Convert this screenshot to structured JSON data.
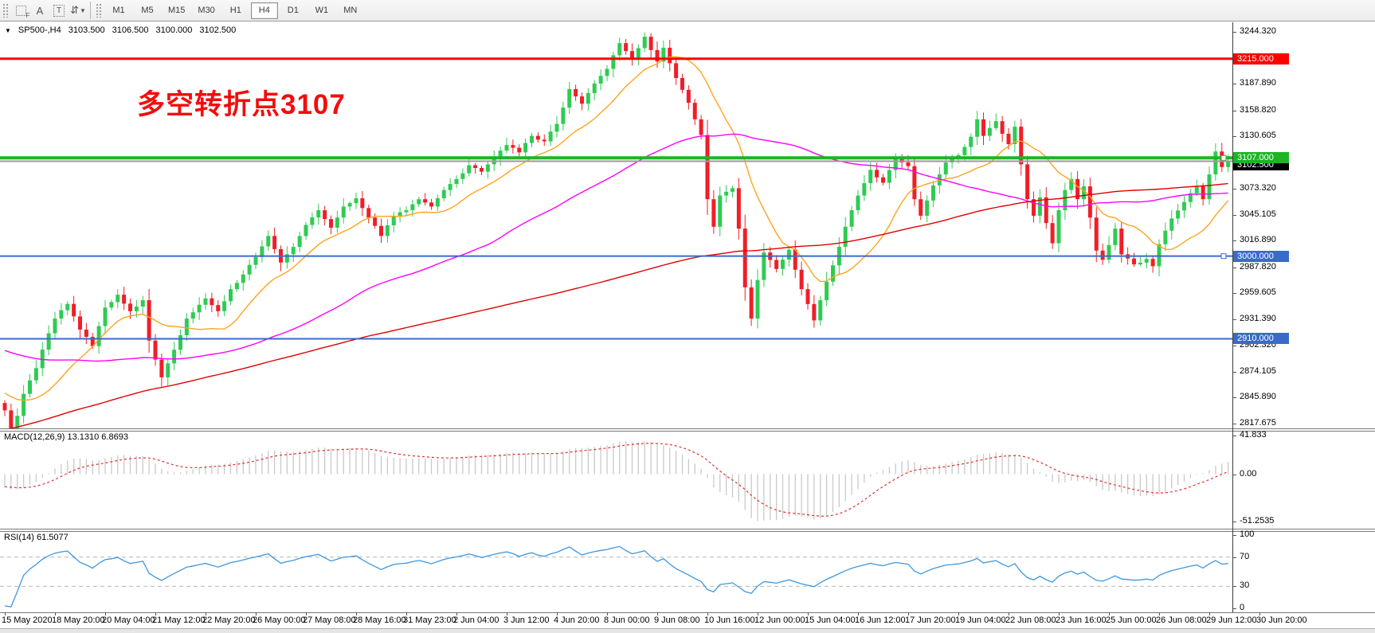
{
  "toolbar": {
    "icons": [
      {
        "name": "shapes-f-icon",
        "glyph": "F"
      },
      {
        "name": "text-a-icon",
        "glyph": "A"
      },
      {
        "name": "label-t-icon",
        "glyph": "T"
      },
      {
        "name": "arrange-arrows-icon",
        "glyph": "⇵"
      }
    ],
    "timeframes": [
      {
        "label": "M1",
        "active": false
      },
      {
        "label": "M5",
        "active": false
      },
      {
        "label": "M15",
        "active": false
      },
      {
        "label": "M30",
        "active": false
      },
      {
        "label": "H1",
        "active": false
      },
      {
        "label": "H4",
        "active": true
      },
      {
        "label": "D1",
        "active": false
      },
      {
        "label": "W1",
        "active": false
      },
      {
        "label": "MN",
        "active": false
      }
    ]
  },
  "header": {
    "caret": "▼",
    "symbol_period": "SP500-,H4",
    "open": "3103.500",
    "high": "3106.500",
    "low": "3100.000",
    "close": "3102.500"
  },
  "annotation": {
    "text": "多空转折点3107",
    "color": "#f20d0d"
  },
  "indicators": {
    "macd_label": "MACD(12,26,9) 13.1310 6.8693",
    "rsi_label": "RSI(14) 61.5077"
  },
  "axes": {
    "main_ticks": [
      {
        "label": "3244.320",
        "price": 3244.32,
        "badge": null
      },
      {
        "label": "3215.000",
        "price": 3215.0,
        "badge": "#fe0000"
      },
      {
        "label": "3187.890",
        "price": 3187.89,
        "badge": null
      },
      {
        "label": "3158.820",
        "price": 3158.82,
        "badge": null
      },
      {
        "label": "3130.605",
        "price": 3130.605,
        "badge": null
      },
      {
        "label": "3102.500",
        "price": 3102.5,
        "badge": "#000000"
      },
      {
        "label": "3107.000",
        "price": 3107.0,
        "badge": "#1db426"
      },
      {
        "label": "3073.320",
        "price": 3073.32,
        "badge": null
      },
      {
        "label": "3045.105",
        "price": 3045.105,
        "badge": null
      },
      {
        "label": "3016.890",
        "price": 3016.89,
        "badge": null
      },
      {
        "label": "3000.000",
        "price": 3000.0,
        "badge": "#3a6bc8"
      },
      {
        "label": "2987.820",
        "price": 2987.82,
        "badge": null
      },
      {
        "label": "2959.605",
        "price": 2959.605,
        "badge": null
      },
      {
        "label": "2931.390",
        "price": 2931.39,
        "badge": null
      },
      {
        "label": "2910.000",
        "price": 2910.0,
        "badge": "#3a6bc8"
      },
      {
        "label": "2902.320",
        "price": 2902.32,
        "badge": null
      },
      {
        "label": "2874.105",
        "price": 2874.105,
        "badge": null
      },
      {
        "label": "2845.890",
        "price": 2845.89,
        "badge": null
      },
      {
        "label": "2817.675",
        "price": 2817.675,
        "badge": null
      }
    ],
    "macd_ticks": [
      {
        "label": "41.833",
        "value": 41.833
      },
      {
        "label": "0.00",
        "value": 0
      },
      {
        "label": "-51.2535",
        "value": -51.2535
      }
    ],
    "rsi_ticks": [
      {
        "label": "100",
        "value": 100
      },
      {
        "label": "70",
        "value": 70
      },
      {
        "label": "30",
        "value": 30
      },
      {
        "label": "0",
        "value": 0
      }
    ],
    "time_labels": [
      "15 May 2020",
      "18 May 20:00",
      "20 May 04:00",
      "21 May 12:00",
      "22 May 20:00",
      "26 May 00:00",
      "27 May 08:00",
      "28 May 16:00",
      "31 May 23:00",
      "2 Jun 04:00",
      "3 Jun 12:00",
      "4 Jun 20:00",
      "8 Jun 00:00",
      "9 Jun 08:00",
      "10 Jun 16:00",
      "12 Jun 00:00",
      "15 Jun 04:00",
      "16 Jun 12:00",
      "17 Jun 20:00",
      "19 Jun 04:00",
      "22 Jun 08:00",
      "23 Jun 16:00",
      "25 Jun 00:00",
      "26 Jun 08:00",
      "29 Jun 12:00",
      "30 Jun 20:00"
    ]
  },
  "chart_data": {
    "type": "candlestick",
    "symbol": "SP500-",
    "timeframe": "H4",
    "bars": 196,
    "price_axis_range": {
      "top": 3254.7,
      "bottom": 2812.4
    },
    "close_keypoints": [
      [
        0,
        2832
      ],
      [
        1,
        2812
      ],
      [
        2,
        2826
      ],
      [
        3,
        2850
      ],
      [
        5,
        2878
      ],
      [
        7,
        2916
      ],
      [
        8,
        2932
      ],
      [
        10,
        2948
      ],
      [
        12,
        2920
      ],
      [
        14,
        2902
      ],
      [
        16,
        2944
      ],
      [
        18,
        2958
      ],
      [
        20,
        2940
      ],
      [
        22,
        2952
      ],
      [
        23,
        2908
      ],
      [
        25,
        2868
      ],
      [
        27,
        2898
      ],
      [
        29,
        2932
      ],
      [
        32,
        2954
      ],
      [
        34,
        2940
      ],
      [
        36,
        2964
      ],
      [
        38,
        2980
      ],
      [
        40,
        2999
      ],
      [
        42,
        3022
      ],
      [
        44,
        2993
      ],
      [
        46,
        3010
      ],
      [
        48,
        3034
      ],
      [
        50,
        3050
      ],
      [
        52,
        3031
      ],
      [
        54,
        3054
      ],
      [
        56,
        3063
      ],
      [
        58,
        3042
      ],
      [
        60,
        3022
      ],
      [
        62,
        3044
      ],
      [
        64,
        3050
      ],
      [
        66,
        3062
      ],
      [
        68,
        3054
      ],
      [
        70,
        3072
      ],
      [
        72,
        3084
      ],
      [
        74,
        3099
      ],
      [
        76,
        3092
      ],
      [
        78,
        3107
      ],
      [
        80,
        3121
      ],
      [
        82,
        3113
      ],
      [
        84,
        3131
      ],
      [
        86,
        3125
      ],
      [
        88,
        3144
      ],
      [
        90,
        3182
      ],
      [
        92,
        3166
      ],
      [
        94,
        3188
      ],
      [
        96,
        3204
      ],
      [
        98,
        3232
      ],
      [
        100,
        3216
      ],
      [
        102,
        3239
      ],
      [
        104,
        3212
      ],
      [
        105,
        3227
      ],
      [
        107,
        3194
      ],
      [
        109,
        3167
      ],
      [
        111,
        3132
      ],
      [
        112,
        3062
      ],
      [
        113,
        3032
      ],
      [
        114,
        3066
      ],
      [
        116,
        3074
      ],
      [
        117,
        3030
      ],
      [
        118,
        2966
      ],
      [
        119,
        2932
      ],
      [
        120,
        2974
      ],
      [
        121,
        3004
      ],
      [
        123,
        2986
      ],
      [
        125,
        3007
      ],
      [
        127,
        2964
      ],
      [
        129,
        2930
      ],
      [
        130,
        2952
      ],
      [
        132,
        2990
      ],
      [
        134,
        3032
      ],
      [
        136,
        3066
      ],
      [
        138,
        3094
      ],
      [
        140,
        3080
      ],
      [
        142,
        3106
      ],
      [
        144,
        3098
      ],
      [
        145,
        3062
      ],
      [
        146,
        3044
      ],
      [
        148,
        3077
      ],
      [
        150,
        3102
      ],
      [
        152,
        3110
      ],
      [
        154,
        3130
      ],
      [
        155,
        3149
      ],
      [
        156,
        3131
      ],
      [
        158,
        3147
      ],
      [
        160,
        3122
      ],
      [
        161,
        3141
      ],
      [
        162,
        3100
      ],
      [
        163,
        3062
      ],
      [
        164,
        3044
      ],
      [
        165,
        3064
      ],
      [
        166,
        3036
      ],
      [
        167,
        3014
      ],
      [
        168,
        3050
      ],
      [
        169,
        3072
      ],
      [
        170,
        3084
      ],
      [
        171,
        3062
      ],
      [
        172,
        3076
      ],
      [
        173,
        3042
      ],
      [
        174,
        3006
      ],
      [
        175,
        2996
      ],
      [
        176,
        3012
      ],
      [
        177,
        3030
      ],
      [
        178,
        3002
      ],
      [
        180,
        2991
      ],
      [
        182,
        2997
      ],
      [
        183,
        2989
      ],
      [
        184,
        3013
      ],
      [
        186,
        3041
      ],
      [
        188,
        3059
      ],
      [
        190,
        3076
      ],
      [
        191,
        3062
      ],
      [
        192,
        3089
      ],
      [
        193,
        3114
      ],
      [
        194,
        3097
      ],
      [
        195,
        3102.5
      ]
    ],
    "levels": [
      {
        "price": 3215.0,
        "color": "#fe0000",
        "width": 3,
        "handle": false
      },
      {
        "price": 3107.0,
        "color": "#1db426",
        "width": 4,
        "handle": true
      },
      {
        "price": 3103.4,
        "color": "#9b9b9b",
        "width": 2,
        "handle": false
      },
      {
        "price": 3000.0,
        "color": "#3a6bc8",
        "width": 2,
        "handle": true
      },
      {
        "price": 2910.0,
        "color": "#3a6bc8",
        "width": 2,
        "handle": false
      }
    ],
    "current_price": {
      "value": 3102.5,
      "label": "3102.500"
    },
    "moving_averages": [
      {
        "period": 13,
        "color": "#ffa41c"
      },
      {
        "period": 55,
        "color": "#ff00ff"
      },
      {
        "period": 150,
        "color": "#e10000"
      }
    ],
    "macd": {
      "fast": 12,
      "slow": 26,
      "signal": 9,
      "main": 13.131,
      "signal_value": 6.8693,
      "histogram_color": "#c9c9c9",
      "signal_color": "#e03030",
      "range": [
        -51.2535,
        41.833
      ]
    },
    "rsi": {
      "period": 14,
      "value": 61.5077,
      "color": "#3e97de",
      "levels": [
        70,
        30
      ]
    },
    "candle_colors": {
      "up": "#2fcb53",
      "down": "#f01e28"
    },
    "legend_position": "none",
    "grid": false
  }
}
